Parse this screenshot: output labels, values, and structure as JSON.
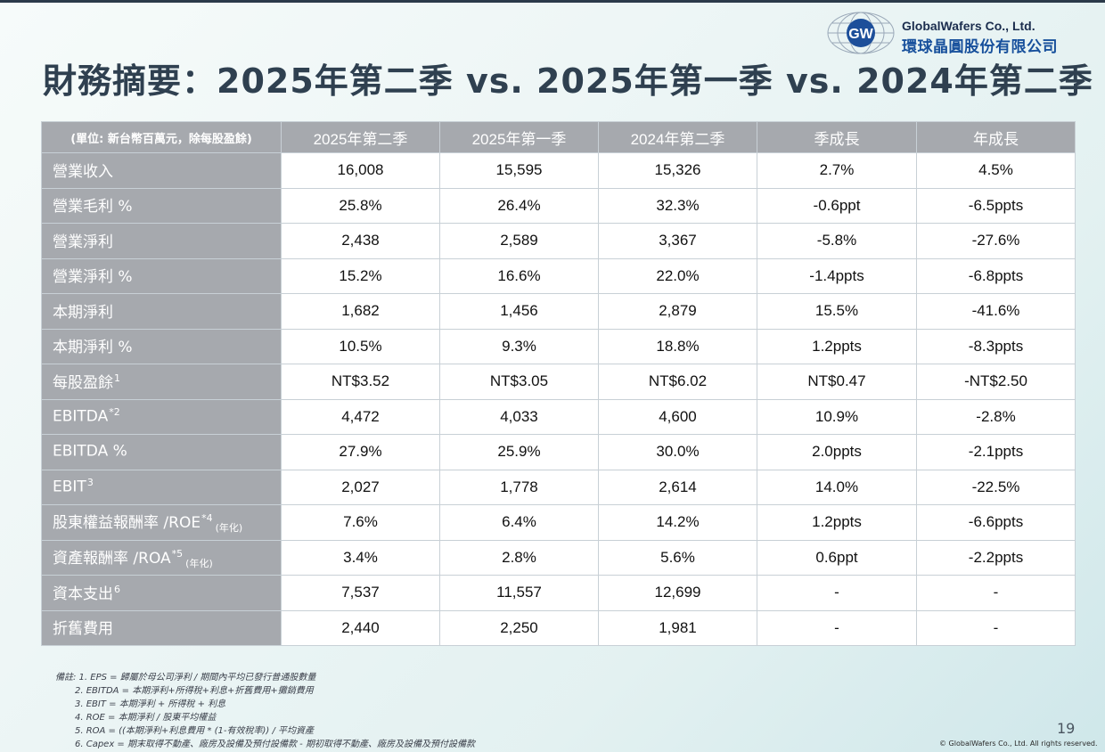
{
  "title": "財務摘要：2025年第二季 vs. 2025年第一季 vs. 2024年第二季",
  "logo": {
    "mark": "GW",
    "company_en": "GlobalWafers Co., Ltd.",
    "company_zh": "環球晶圓股份有限公司"
  },
  "table": {
    "unit_header": "(單位: 新台幣百萬元，除每股盈餘)",
    "columns": [
      "2025年第二季",
      "2025年第一季",
      "2024年第二季",
      "季成長",
      "年成長"
    ],
    "rows": [
      {
        "label": "營業收入",
        "sup": "",
        "sub": "",
        "values": [
          "16,008",
          "15,595",
          "15,326",
          "2.7%",
          "4.5%"
        ]
      },
      {
        "label": "營業毛利 %",
        "sup": "",
        "sub": "",
        "values": [
          "25.8%",
          "26.4%",
          "32.3%",
          "-0.6ppt",
          "-6.5ppts"
        ]
      },
      {
        "label": "營業淨利",
        "sup": "",
        "sub": "",
        "values": [
          "2,438",
          "2,589",
          "3,367",
          "-5.8%",
          "-27.6%"
        ]
      },
      {
        "label": "營業淨利 %",
        "sup": "",
        "sub": "",
        "values": [
          "15.2%",
          "16.6%",
          "22.0%",
          "-1.4ppts",
          "-6.8ppts"
        ]
      },
      {
        "label": "本期淨利",
        "sup": "",
        "sub": "",
        "values": [
          "1,682",
          "1,456",
          "2,879",
          "15.5%",
          "-41.6%"
        ]
      },
      {
        "label": "本期淨利 %",
        "sup": "",
        "sub": "",
        "values": [
          "10.5%",
          "9.3%",
          "18.8%",
          "1.2ppts",
          "-8.3ppts"
        ]
      },
      {
        "label": "每股盈餘",
        "sup": "1",
        "sub": "",
        "values": [
          "NT$3.52",
          "NT$3.05",
          "NT$6.02",
          "NT$0.47",
          "-NT$2.50"
        ]
      },
      {
        "label": "EBITDA",
        "sup": "*2",
        "sub": "",
        "values": [
          "4,472",
          "4,033",
          "4,600",
          "10.9%",
          "-2.8%"
        ]
      },
      {
        "label": "EBITDA %",
        "sup": "",
        "sub": "",
        "values": [
          "27.9%",
          "25.9%",
          "30.0%",
          "2.0ppts",
          "-2.1ppts"
        ]
      },
      {
        "label": "EBIT",
        "sup": "3",
        "sub": "",
        "values": [
          "2,027",
          "1,778",
          "2,614",
          "14.0%",
          "-22.5%"
        ]
      },
      {
        "label": "股東權益報酬率 /ROE",
        "sup": "*4",
        "sub": "(年化)",
        "values": [
          "7.6%",
          "6.4%",
          "14.2%",
          "1.2ppts",
          "-6.6ppts"
        ]
      },
      {
        "label": "資產報酬率 /ROA",
        "sup": "*5",
        "sub": "(年化)",
        "values": [
          "3.4%",
          "2.8%",
          "5.6%",
          "0.6ppt",
          "-2.2ppts"
        ]
      },
      {
        "label": "資本支出",
        "sup": "6",
        "sub": "",
        "values": [
          "7,537",
          "11,557",
          "12,699",
          "-",
          "-"
        ]
      },
      {
        "label": "折舊費用",
        "sup": "",
        "sub": "",
        "values": [
          "2,440",
          "2,250",
          "1,981",
          "-",
          "-"
        ]
      }
    ]
  },
  "notes": [
    "備註: 1. EPS = 歸屬於母公司淨利 / 期間內平均已發行普通股數量",
    "2. EBITDA = 本期淨利+所得稅+利息+折舊費用+攤銷費用",
    "3. EBIT = 本期淨利 + 所得稅 + 利息",
    "4. ROE = 本期淨利 / 股東平均權益",
    "5. ROA = ((本期淨利+利息費用 * (1-有效稅率)) / 平均資產",
    "6. Capex = 期末取得不動產、廠房及設備及預付設備款 - 期初取得不動產、廠房及設備及預付設備款"
  ],
  "page_number": "19",
  "copyright": "© GlobalWafers Co., Ltd. All rights reserved."
}
